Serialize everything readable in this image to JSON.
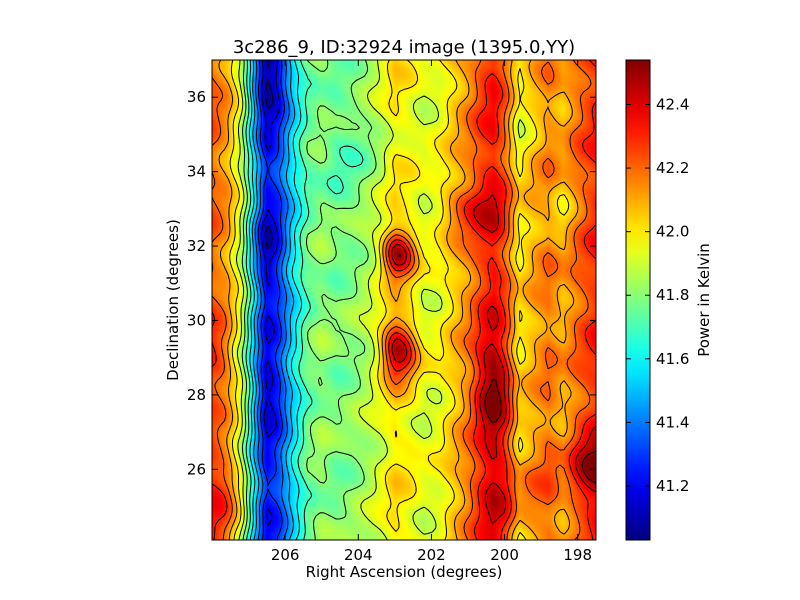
{
  "chart_data": {
    "type": "heatmap",
    "title": "3c286_9, ID:32924 image (1395.0,YY)",
    "xlabel": "Right Ascension (degrees)",
    "ylabel": "Declination (degrees)",
    "colorbar_label": "Power in Kelvin",
    "colormap": "jet",
    "xlim": [
      208.0,
      197.5
    ],
    "ylim": [
      24.1,
      37.0
    ],
    "x_ticks": [
      {
        "value": 206,
        "label": "206"
      },
      {
        "value": 204,
        "label": "204"
      },
      {
        "value": 202,
        "label": "202"
      },
      {
        "value": 200,
        "label": "200"
      },
      {
        "value": 198,
        "label": "198"
      }
    ],
    "y_ticks": [
      {
        "value": 26,
        "label": "26"
      },
      {
        "value": 28,
        "label": "28"
      },
      {
        "value": 30,
        "label": "30"
      },
      {
        "value": 32,
        "label": "32"
      },
      {
        "value": 34,
        "label": "34"
      },
      {
        "value": 36,
        "label": "36"
      }
    ],
    "color_range": [
      41.03,
      42.54
    ],
    "colorbar_ticks": [
      {
        "value": 41.2,
        "label": "41.2"
      },
      {
        "value": 41.4,
        "label": "41.4"
      },
      {
        "value": 41.6,
        "label": "41.6"
      },
      {
        "value": 41.8,
        "label": "41.8"
      },
      {
        "value": 42.0,
        "label": "42.0"
      },
      {
        "value": 42.2,
        "label": "42.2"
      },
      {
        "value": 42.4,
        "label": "42.4"
      }
    ],
    "contour_levels": [
      41.1,
      41.2,
      41.3,
      41.4,
      41.5,
      41.6,
      41.7,
      41.8,
      41.9,
      42.0,
      42.1,
      42.2,
      42.3,
      42.4,
      42.5
    ],
    "field": {
      "baseline_by_ra": [
        {
          "ra": 208.0,
          "value": 42.22
        },
        {
          "ra": 207.6,
          "value": 42.12
        },
        {
          "ra": 207.2,
          "value": 41.9
        },
        {
          "ra": 206.8,
          "value": 41.5
        },
        {
          "ra": 206.5,
          "value": 41.22
        },
        {
          "ra": 206.2,
          "value": 41.3
        },
        {
          "ra": 205.8,
          "value": 41.55
        },
        {
          "ra": 205.4,
          "value": 41.75
        },
        {
          "ra": 205.0,
          "value": 41.82
        },
        {
          "ra": 204.6,
          "value": 41.78
        },
        {
          "ra": 204.2,
          "value": 41.8
        },
        {
          "ra": 203.8,
          "value": 41.85
        },
        {
          "ra": 203.4,
          "value": 41.92
        },
        {
          "ra": 203.0,
          "value": 42.02
        },
        {
          "ra": 202.6,
          "value": 41.98
        },
        {
          "ra": 202.2,
          "value": 41.92
        },
        {
          "ra": 201.8,
          "value": 41.95
        },
        {
          "ra": 201.4,
          "value": 42.05
        },
        {
          "ra": 201.0,
          "value": 42.15
        },
        {
          "ra": 200.6,
          "value": 42.28
        },
        {
          "ra": 200.3,
          "value": 42.35
        },
        {
          "ra": 200.0,
          "value": 42.25
        },
        {
          "ra": 199.6,
          "value": 42.0
        },
        {
          "ra": 199.2,
          "value": 42.1
        },
        {
          "ra": 198.8,
          "value": 42.18
        },
        {
          "ra": 198.4,
          "value": 42.1
        },
        {
          "ra": 198.0,
          "value": 42.2
        },
        {
          "ra": 197.5,
          "value": 42.3
        }
      ],
      "blobs": [
        {
          "ra": 202.9,
          "dec": 31.8,
          "amp": 0.48,
          "sigma_ra": 0.32,
          "sigma_dec": 0.45
        },
        {
          "ra": 202.9,
          "dec": 29.2,
          "amp": 0.48,
          "sigma_ra": 0.35,
          "sigma_dec": 0.55
        },
        {
          "ra": 200.3,
          "dec": 28.2,
          "amp": 0.22,
          "sigma_ra": 0.35,
          "sigma_dec": 0.9
        },
        {
          "ra": 197.6,
          "dec": 26.0,
          "amp": 0.28,
          "sigma_ra": 0.4,
          "sigma_dec": 0.6
        },
        {
          "ra": 207.8,
          "dec": 25.3,
          "amp": 0.15,
          "sigma_ra": 0.4,
          "sigma_dec": 0.8
        },
        {
          "ra": 207.9,
          "dec": 29.0,
          "amp": 0.12,
          "sigma_ra": 0.3,
          "sigma_dec": 0.6
        },
        {
          "ra": 206.5,
          "dec": 36.5,
          "amp": -0.2,
          "sigma_ra": 0.35,
          "sigma_dec": 0.7
        },
        {
          "ra": 206.5,
          "dec": 31.9,
          "amp": -0.12,
          "sigma_ra": 0.3,
          "sigma_dec": 0.7
        },
        {
          "ra": 206.5,
          "dec": 28.2,
          "amp": -0.1,
          "sigma_ra": 0.3,
          "sigma_dec": 0.6
        },
        {
          "ra": 201.0,
          "dec": 33.0,
          "amp": 0.15,
          "sigma_ra": 0.6,
          "sigma_dec": 0.5
        },
        {
          "ra": 199.8,
          "dec": 25.5,
          "amp": 0.12,
          "sigma_ra": 0.8,
          "sigma_dec": 0.8
        },
        {
          "ra": 198.5,
          "dec": 33.0,
          "amp": -0.08,
          "sigma_ra": 0.4,
          "sigma_dec": 0.6
        },
        {
          "ra": 204.0,
          "dec": 34.5,
          "amp": -0.07,
          "sigma_ra": 0.8,
          "sigma_dec": 1.2
        },
        {
          "ra": 199.5,
          "dec": 35.5,
          "amp": -0.08,
          "sigma_ra": 0.5,
          "sigma_dec": 0.8
        }
      ]
    }
  }
}
